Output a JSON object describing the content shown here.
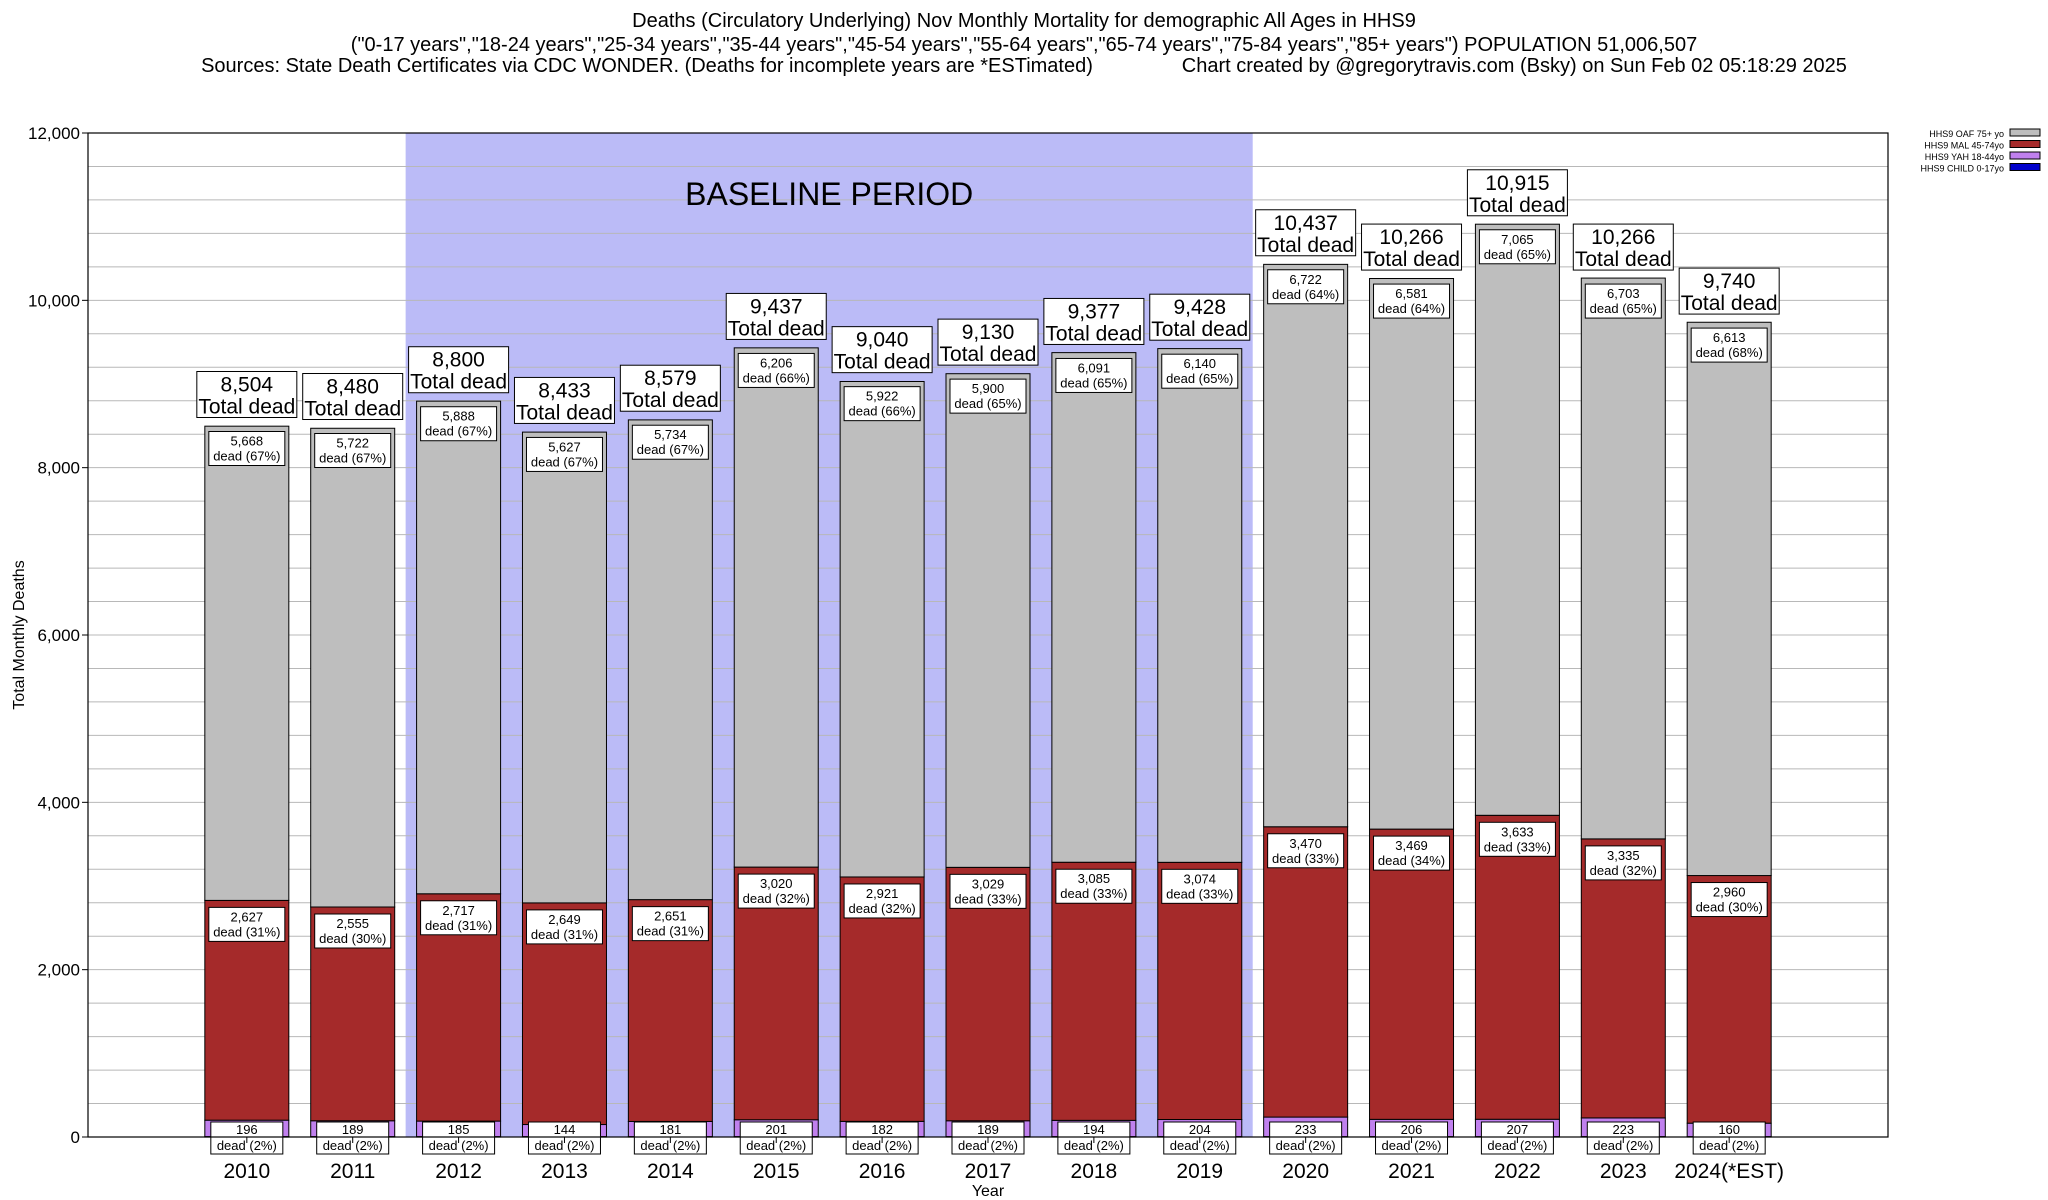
{
  "header": {
    "line1": "Deaths (Circulatory Underlying) Nov Monthly Mortality for demographic All Ages in HHS9",
    "line2": "(\"0-17 years\",\"18-24 years\",\"25-34 years\",\"35-44 years\",\"45-54 years\",\"55-64 years\",\"65-74 years\",\"75-84 years\",\"85+ years\") POPULATION 51,006,507",
    "line3_left": "Sources: State Death Certificates via CDC WONDER. (Deaths for incomplete years are *ESTimated)",
    "line3_right": "Chart created by @gregorytravis.com (Bsky) on Sun Feb 02 05:18:29 2025"
  },
  "chart_data": {
    "type": "bar",
    "stacked": true,
    "title": "Deaths (Circulatory Underlying) Nov Monthly Mortality for demographic All Ages in HHS9",
    "xlabel": "Year",
    "ylabel": "Total Monthly Deaths",
    "ylim": [
      0,
      12000
    ],
    "yticks": [
      0,
      2000,
      4000,
      6000,
      8000,
      10000,
      12000
    ],
    "ytick_labels": [
      "0",
      "2,000",
      "4,000",
      "6,000",
      "8,000",
      "10,000",
      "12,000"
    ],
    "grid": true,
    "legend_position": "top-right",
    "categories": [
      "2010",
      "2011",
      "2012",
      "2013",
      "2014",
      "2015",
      "2016",
      "2017",
      "2018",
      "2019",
      "2020",
      "2021",
      "2022",
      "2023",
      "2024(*EST)"
    ],
    "baseline_period": {
      "label": "BASELINE PERIOD",
      "start": "2012",
      "end": "2019",
      "color": "#bbbbf7"
    },
    "series": [
      {
        "name": "HHS9 CHILD 0-17yo",
        "color": "#0000cc",
        "values": [
          5,
          5,
          5,
          5,
          5,
          5,
          5,
          5,
          5,
          5,
          5,
          5,
          5,
          5,
          5
        ]
      },
      {
        "name": "HHS9 YAH 18-44yo",
        "color": "#c080ee",
        "values": [
          196,
          189,
          185,
          144,
          181,
          201,
          182,
          189,
          194,
          204,
          233,
          206,
          207,
          223,
          160
        ],
        "labels": [
          "196",
          "189",
          "185",
          "144",
          "181",
          "201",
          "182",
          "189",
          "194",
          "204",
          "233",
          "206",
          "207",
          "223",
          "160"
        ],
        "pct_labels": [
          "dead (2%)",
          "dead (2%)",
          "dead (2%)",
          "dead (2%)",
          "dead (2%)",
          "dead (2%)",
          "dead (2%)",
          "dead (2%)",
          "dead (2%)",
          "dead (2%)",
          "dead (2%)",
          "dead (2%)",
          "dead (2%)",
          "dead (2%)",
          "dead (2%)"
        ]
      },
      {
        "name": "HHS9 MAL 45-74yo",
        "color": "#a52a2a",
        "values": [
          2627,
          2555,
          2717,
          2649,
          2651,
          3020,
          2921,
          3029,
          3085,
          3074,
          3470,
          3469,
          3633,
          3335,
          2960
        ],
        "labels": [
          "2,627",
          "2,555",
          "2,717",
          "2,649",
          "2,651",
          "3,020",
          "2,921",
          "3,029",
          "3,085",
          "3,074",
          "3,470",
          "3,469",
          "3,633",
          "3,335",
          "2,960"
        ],
        "pct_labels": [
          "dead (31%)",
          "dead (30%)",
          "dead (31%)",
          "dead (31%)",
          "dead (31%)",
          "dead (32%)",
          "dead (32%)",
          "dead (33%)",
          "dead (33%)",
          "dead (33%)",
          "dead (33%)",
          "dead (34%)",
          "dead (33%)",
          "dead (32%)",
          "dead (30%)"
        ]
      },
      {
        "name": "HHS9 OAF 75+ yo",
        "color": "#bebebe",
        "values": [
          5668,
          5722,
          5888,
          5627,
          5734,
          6206,
          5922,
          5900,
          6091,
          6140,
          6722,
          6581,
          7065,
          6703,
          6613
        ],
        "labels": [
          "5,668",
          "5,722",
          "5,888",
          "5,627",
          "5,734",
          "6,206",
          "5,922",
          "5,900",
          "6,091",
          "6,140",
          "6,722",
          "6,581",
          "7,065",
          "6,703",
          "6,613"
        ],
        "pct_labels": [
          "dead (67%)",
          "dead (67%)",
          "dead (67%)",
          "dead (67%)",
          "dead (67%)",
          "dead (66%)",
          "dead (66%)",
          "dead (65%)",
          "dead (65%)",
          "dead (65%)",
          "dead (64%)",
          "dead (64%)",
          "dead (65%)",
          "dead (65%)",
          "dead (68%)"
        ]
      }
    ],
    "totals": [
      8504,
      8480,
      8800,
      8433,
      8579,
      9437,
      9040,
      9130,
      9377,
      9428,
      10437,
      10266,
      10915,
      10266,
      9740
    ],
    "total_labels": [
      "8,504",
      "8,480",
      "8,800",
      "8,433",
      "8,579",
      "9,437",
      "9,040",
      "9,130",
      "9,377",
      "9,428",
      "10,437",
      "10,266",
      "10,915",
      "10,266",
      "9,740"
    ],
    "total_suffix": "Total dead",
    "legend_order": [
      "HHS9 OAF 75+ yo",
      "HHS9 MAL 45-74yo",
      "HHS9 YAH 18-44yo",
      "HHS9 CHILD 0-17yo"
    ]
  }
}
